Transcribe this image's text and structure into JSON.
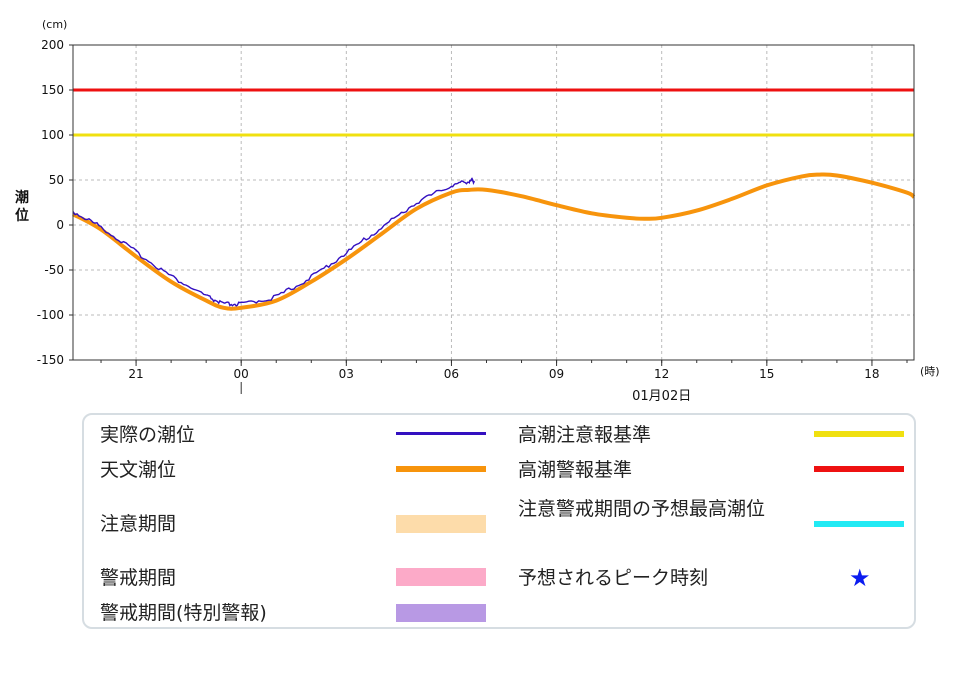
{
  "chart_data": {
    "type": "line",
    "y_unit_label": "(cm)",
    "ylabel": "潮位",
    "x_unit_label": "(時)",
    "ylim": [
      -150,
      200
    ],
    "yticks": [
      200,
      150,
      100,
      50,
      0,
      -50,
      -100,
      -150
    ],
    "xlim": [
      -4.8,
      19.2
    ],
    "xticks": [
      {
        "hour": -3,
        "label": "21"
      },
      {
        "hour": 0,
        "label": "00"
      },
      {
        "hour": 3,
        "label": "03"
      },
      {
        "hour": 6,
        "label": "06"
      },
      {
        "hour": 9,
        "label": "09"
      },
      {
        "hour": 12,
        "label": "12"
      },
      {
        "hour": 15,
        "label": "15"
      },
      {
        "hour": 18,
        "label": "18"
      }
    ],
    "date_label": "01月02日",
    "date_label_hour": 12,
    "day_boundary_hour": 0,
    "grid": true,
    "reference_lines": [
      {
        "name": "高潮警報基準",
        "value": 150,
        "color": "#ee1111"
      },
      {
        "name": "高潮注意報基準",
        "value": 100,
        "color": "#f0e010"
      }
    ],
    "series": [
      {
        "name": "天文潮位",
        "color": "#f7940c",
        "x": [
          -4.8,
          -4,
          -3,
          -2,
          -1,
          -0.5,
          0,
          1,
          2,
          3,
          4,
          5,
          6,
          6.5,
          7,
          8,
          9,
          10,
          11,
          11.5,
          12,
          13,
          14,
          15,
          16,
          16.5,
          17,
          18,
          19,
          19.2
        ],
        "y": [
          12,
          -5,
          -35,
          -63,
          -84,
          -92,
          -92,
          -84,
          -63,
          -38,
          -10,
          18,
          36,
          39,
          39,
          32,
          22,
          13,
          8,
          7,
          8,
          16,
          29,
          44,
          54,
          56,
          55,
          47,
          36,
          31
        ]
      },
      {
        "name": "実際の潮位",
        "color": "#3310c0",
        "x": [
          -4.8,
          -4,
          -3,
          -2,
          -1,
          -0.5,
          0,
          1,
          2,
          3,
          4,
          5,
          6,
          6.5,
          6.65
        ],
        "y": [
          15,
          -2,
          -30,
          -57,
          -79,
          -88,
          -88,
          -80,
          -58,
          -31,
          -3,
          25,
          44,
          49,
          49
        ]
      }
    ]
  },
  "legend": {
    "items": [
      {
        "label": "実際の潮位",
        "color": "#3310c0",
        "kind": "thin-line"
      },
      {
        "label": "天文潮位",
        "color": "#f7940c",
        "kind": "line"
      },
      {
        "label": "注意期間",
        "color": "#fddcaa",
        "kind": "bar"
      },
      {
        "label": "警戒期間",
        "color": "#fcaac8",
        "kind": "bar"
      },
      {
        "label": "警戒期間(特別警報)",
        "color": "#b899e4",
        "kind": "bar"
      },
      {
        "label": "高潮注意報基準",
        "color": "#f0e010",
        "kind": "line"
      },
      {
        "label": "高潮警報基準",
        "color": "#ee1111",
        "kind": "line"
      },
      {
        "label": "注意警戒期間の予想最高潮位",
        "color": "#22eaf4",
        "kind": "line"
      },
      {
        "label": "予想されるピーク時刻",
        "color": "#0b1cf0",
        "kind": "star",
        "icon": "star-icon"
      }
    ]
  }
}
